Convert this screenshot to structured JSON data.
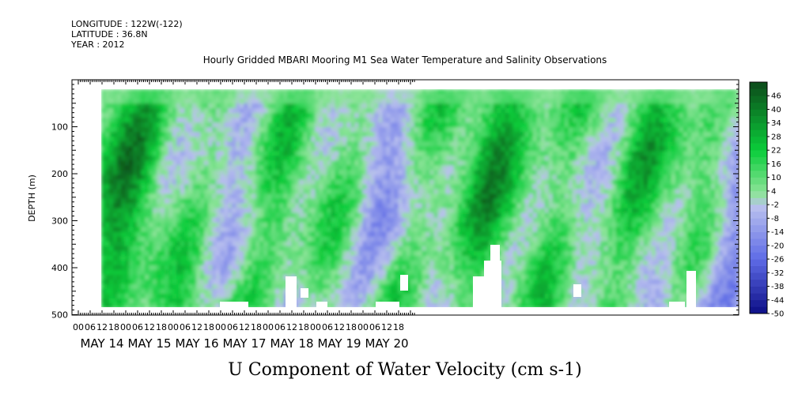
{
  "header": {
    "longitude": "LONGITUDE : 122W(-122)",
    "latitude": "LATITUDE : 36.8N",
    "year": "YEAR : 2012"
  },
  "chart_data": {
    "type": "heatmap",
    "title": "Hourly Gridded MBARI Mooring M1 Sea Water Temperature and Salinity Observations",
    "xlabel": "U Component of Water Velocity (cm s-1)",
    "ylabel": "DEPTH (m)",
    "y_ticks": [
      "100",
      "200",
      "300",
      "400",
      "500"
    ],
    "ylim": [
      500,
      0
    ],
    "hour_ticks": [
      "00",
      "06",
      "12",
      "18",
      "00",
      "06",
      "12",
      "18",
      "00",
      "06",
      "12",
      "18",
      "00",
      "06",
      "12",
      "18",
      "00",
      "06",
      "12",
      "18",
      "00",
      "06",
      "12",
      "18",
      "00",
      "06",
      "12",
      "18"
    ],
    "day_labels": [
      "MAY 14",
      "MAY 15",
      "MAY 16",
      "MAY 17",
      "MAY 18",
      "MAY 19",
      "MAY 20"
    ],
    "colorbar": {
      "labels": [
        "46",
        "40",
        "34",
        "28",
        "22",
        "16",
        "10",
        "4",
        "-2",
        "-8",
        "-14",
        "-20",
        "-26",
        "-32",
        "-38",
        "-44",
        "-50"
      ],
      "min": -50,
      "max": 52,
      "step": 3,
      "colors": {
        "deep_green": "#0c4a1a",
        "green": "#0acd3a",
        "light_green": "#8ee49a",
        "light_blue": "#b9c0ee",
        "blue": "#5e6be6",
        "deep_blue": "#0c0e86"
      }
    },
    "data_extent": {
      "start": "MAY 14 06",
      "end": "MAY 20 23",
      "depth_top": 15,
      "depth_bottom": 485
    }
  }
}
